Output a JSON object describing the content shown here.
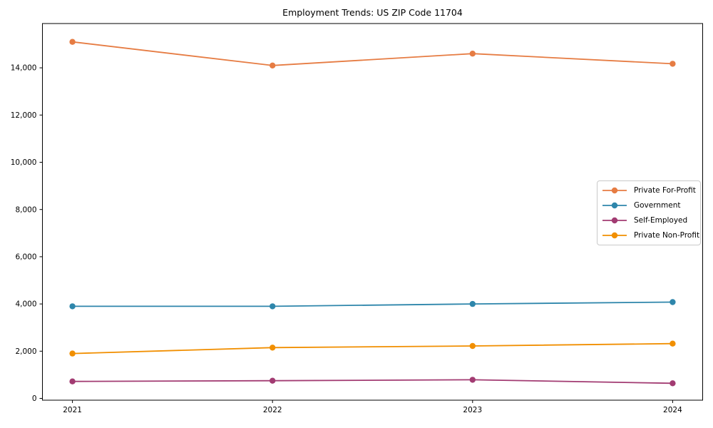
{
  "title": "Employment Trends: US ZIP Code 11704",
  "chart_data": {
    "type": "line",
    "x": [
      2021,
      2022,
      2023,
      2024
    ],
    "xtick_labels": [
      "2021",
      "2022",
      "2023",
      "2024"
    ],
    "series": [
      {
        "name": "Private For-Profit",
        "color": "#E67C43",
        "values": [
          15100,
          14100,
          14600,
          14170
        ]
      },
      {
        "name": "Government",
        "color": "#2E86AB",
        "values": [
          3900,
          3900,
          4000,
          4080
        ]
      },
      {
        "name": "Self-Employed",
        "color": "#A23B72",
        "values": [
          720,
          750,
          790,
          640
        ]
      },
      {
        "name": "Private Non-Profit",
        "color": "#F18F01",
        "values": [
          1900,
          2150,
          2220,
          2320
        ]
      }
    ],
    "title": "Employment Trends: US ZIP Code 11704",
    "xlabel": "",
    "ylabel": "",
    "xlim": [
      2020.85,
      2024.15
    ],
    "ylim": [
      -75,
      15875
    ],
    "yticks": [
      0,
      2000,
      4000,
      6000,
      8000,
      10000,
      12000,
      14000
    ],
    "ytick_labels": [
      "0",
      "2,000",
      "4,000",
      "6,000",
      "8,000",
      "10,000",
      "12,000",
      "14,000"
    ],
    "grid": false,
    "legend_position": "center right",
    "marker": "o",
    "frame": true
  }
}
